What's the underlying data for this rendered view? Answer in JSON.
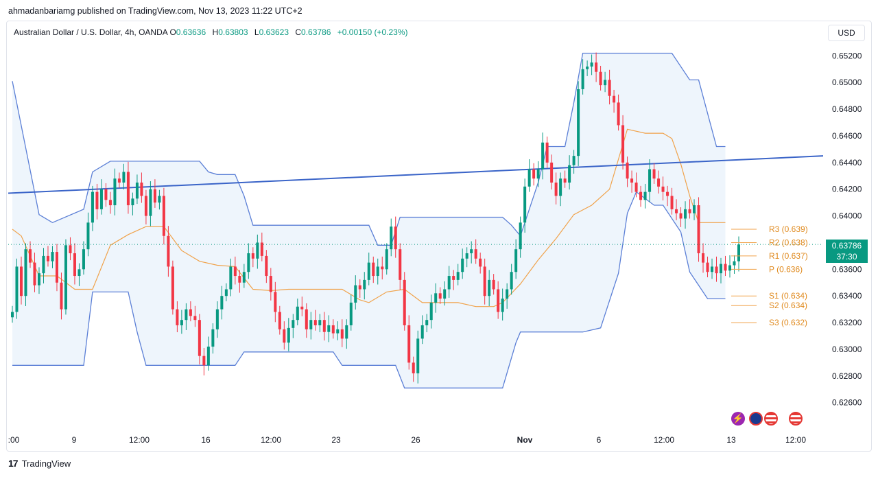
{
  "header": {
    "published_line": "ahmadanbariamg published on TradingView.com, Nov 13, 2023 11:22 UTC+2"
  },
  "legend": {
    "symbol": "Australian Dollar / U.S. Dollar, 4h, OANDA",
    "o_label": "O",
    "o_value": "0.63636",
    "h_label": "H",
    "h_value": "0.63803",
    "l_label": "L",
    "l_value": "0.63623",
    "c_label": "C",
    "c_value": "0.63786",
    "change": "+0.00150 (+0.23%)"
  },
  "currency_button": "USD",
  "price_tag": {
    "price": "0.63786",
    "countdown": "37:30"
  },
  "footer": {
    "logo": "17",
    "brand": "TradingView"
  },
  "icons": [
    "lightning-icon",
    "australia-flag-icon",
    "us-flag-icon",
    "us-flag-icon"
  ],
  "colors": {
    "up": "#089981",
    "down": "#f23645",
    "channel": "#5b7fd6",
    "channel_fill": "#e3effa",
    "midline": "#f0a24a",
    "trendline": "#3a64c8",
    "pivot": "#f0a24a"
  },
  "chart_data": {
    "type": "candlestick",
    "timeframe": "4h",
    "y_axis": {
      "ticks": [
        0.652,
        0.65,
        0.648,
        0.646,
        0.644,
        0.642,
        0.64,
        0.638,
        0.636,
        0.634,
        0.632,
        0.63,
        0.628,
        0.626
      ],
      "tick_labels": [
        "0.65200",
        "0.65000",
        "0.64800",
        "0.64600",
        "0.64400",
        "0.64200",
        "0.64000",
        "0.63800",
        "0.63600",
        "0.63400",
        "0.63200",
        "0.63000",
        "0.62800",
        "0.62600"
      ],
      "ylim": [
        0.6248,
        0.6531
      ]
    },
    "x_axis": {
      "labels": [
        ":00",
        "9",
        "12:00",
        "16",
        "12:00",
        "23",
        "26",
        "Nov",
        "6",
        "12:00",
        "13",
        "12:00"
      ],
      "bold_label": "Nov"
    },
    "candle_closes": [
      0.6328,
      0.6362,
      0.634,
      0.6375,
      0.6365,
      0.6348,
      0.6357,
      0.637,
      0.6366,
      0.6373,
      0.635,
      0.633,
      0.6378,
      0.6372,
      0.6355,
      0.636,
      0.6375,
      0.6395,
      0.6418,
      0.6405,
      0.642,
      0.6412,
      0.6408,
      0.6428,
      0.6425,
      0.6433,
      0.6408,
      0.6413,
      0.6425,
      0.6415,
      0.64,
      0.642,
      0.641,
      0.6415,
      0.6385,
      0.6362,
      0.633,
      0.6318,
      0.6322,
      0.633,
      0.6325,
      0.6322,
      0.6295,
      0.6288,
      0.6302,
      0.6315,
      0.633,
      0.634,
      0.6345,
      0.6362,
      0.6355,
      0.635,
      0.6358,
      0.6372,
      0.6368,
      0.638,
      0.637,
      0.6355,
      0.6343,
      0.6328,
      0.6315,
      0.6305,
      0.6316,
      0.6322,
      0.6332,
      0.633,
      0.6315,
      0.6322,
      0.6318,
      0.6322,
      0.6313,
      0.6318,
      0.6312,
      0.6315,
      0.6308,
      0.6318,
      0.6335,
      0.6348,
      0.6345,
      0.6352,
      0.6365,
      0.6355,
      0.6362,
      0.636,
      0.6375,
      0.6392,
      0.6375,
      0.6352,
      0.6318,
      0.629,
      0.6282,
      0.6308,
      0.6318,
      0.6322,
      0.6335,
      0.6342,
      0.6338,
      0.6345,
      0.6355,
      0.6352,
      0.6358,
      0.6368,
      0.6372,
      0.6375,
      0.6368,
      0.6362,
      0.634,
      0.6352,
      0.6345,
      0.6328,
      0.6338,
      0.6345,
      0.6358,
      0.6375,
      0.6395,
      0.6422,
      0.6435,
      0.6428,
      0.6435,
      0.6455,
      0.644,
      0.6425,
      0.6415,
      0.6428,
      0.6425,
      0.6438,
      0.6445,
      0.6495,
      0.651,
      0.6512,
      0.6515,
      0.6508,
      0.6498,
      0.6502,
      0.649,
      0.6485,
      0.6468,
      0.644,
      0.6428,
      0.6425,
      0.6418,
      0.6412,
      0.6418,
      0.6435,
      0.6428,
      0.6422,
      0.6418,
      0.6415,
      0.6405,
      0.6402,
      0.6398,
      0.6405,
      0.6402,
      0.6408,
      0.6372,
      0.6365,
      0.6358,
      0.6362,
      0.6357,
      0.6364,
      0.6359,
      0.6363,
      0.6366,
      0.63786
    ],
    "channel": {
      "upper_points": [
        [
          0,
          0.6501
        ],
        [
          6,
          0.6401
        ],
        [
          9,
          0.6395
        ],
        [
          16,
          0.6405
        ],
        [
          18,
          0.6433
        ],
        [
          22,
          0.6441
        ],
        [
          26,
          0.6441
        ],
        [
          36,
          0.6441
        ],
        [
          42,
          0.6441
        ],
        [
          44,
          0.6433
        ],
        [
          46,
          0.6431
        ],
        [
          50,
          0.6431
        ],
        [
          52,
          0.6415
        ],
        [
          54,
          0.6393
        ],
        [
          64,
          0.6393
        ],
        [
          76,
          0.6393
        ],
        [
          80,
          0.6393
        ],
        [
          82,
          0.6378
        ],
        [
          85,
          0.6378
        ],
        [
          87,
          0.6399
        ],
        [
          96,
          0.6399
        ],
        [
          110,
          0.6399
        ],
        [
          112,
          0.6393
        ],
        [
          114,
          0.6385
        ],
        [
          118,
          0.6425
        ],
        [
          120,
          0.6452
        ],
        [
          124,
          0.6452
        ],
        [
          126,
          0.6485
        ],
        [
          128,
          0.6522
        ],
        [
          132,
          0.6522
        ],
        [
          148,
          0.6522
        ],
        [
          152,
          0.6502
        ],
        [
          154,
          0.6502
        ],
        [
          158,
          0.6452
        ],
        [
          160,
          0.6452
        ]
      ],
      "lower_points": [
        [
          0,
          0.6288
        ],
        [
          16,
          0.6288
        ],
        [
          18,
          0.6343
        ],
        [
          22,
          0.6343
        ],
        [
          26,
          0.6343
        ],
        [
          28,
          0.6313
        ],
        [
          30,
          0.6288
        ],
        [
          32,
          0.6288
        ],
        [
          44,
          0.6288
        ],
        [
          50,
          0.6288
        ],
        [
          52,
          0.6298
        ],
        [
          60,
          0.6298
        ],
        [
          66,
          0.6298
        ],
        [
          72,
          0.6298
        ],
        [
          74,
          0.6288
        ],
        [
          86,
          0.6288
        ],
        [
          88,
          0.6271
        ],
        [
          106,
          0.6271
        ],
        [
          110,
          0.6271
        ],
        [
          113,
          0.6305
        ],
        [
          114,
          0.6313
        ],
        [
          128,
          0.6313
        ],
        [
          132,
          0.6316
        ],
        [
          136,
          0.6357
        ],
        [
          138,
          0.6402
        ],
        [
          140,
          0.6418
        ],
        [
          144,
          0.6408
        ],
        [
          146,
          0.6408
        ],
        [
          150,
          0.6388
        ],
        [
          152,
          0.6358
        ],
        [
          156,
          0.6338
        ],
        [
          160,
          0.6338
        ]
      ],
      "midline_points": [
        [
          0,
          0.639
        ],
        [
          2,
          0.6385
        ],
        [
          6,
          0.6355
        ],
        [
          10,
          0.6355
        ],
        [
          14,
          0.6345
        ],
        [
          18,
          0.6345
        ],
        [
          22,
          0.6378
        ],
        [
          26,
          0.6386
        ],
        [
          30,
          0.6392
        ],
        [
          34,
          0.6392
        ],
        [
          38,
          0.6374
        ],
        [
          42,
          0.6366
        ],
        [
          46,
          0.6363
        ],
        [
          50,
          0.6362
        ],
        [
          54,
          0.6345
        ],
        [
          58,
          0.6344
        ],
        [
          62,
          0.6345
        ],
        [
          66,
          0.6345
        ],
        [
          70,
          0.6345
        ],
        [
          74,
          0.6345
        ],
        [
          78,
          0.6337
        ],
        [
          80,
          0.6335
        ],
        [
          84,
          0.6343
        ],
        [
          88,
          0.6345
        ],
        [
          92,
          0.6335
        ],
        [
          96,
          0.6335
        ],
        [
          100,
          0.6335
        ],
        [
          104,
          0.6332
        ],
        [
          108,
          0.6332
        ],
        [
          110,
          0.6335
        ],
        [
          114,
          0.6349
        ],
        [
          118,
          0.6367
        ],
        [
          122,
          0.6383
        ],
        [
          126,
          0.6401
        ],
        [
          130,
          0.6408
        ],
        [
          134,
          0.642
        ],
        [
          138,
          0.6465
        ],
        [
          142,
          0.6462
        ],
        [
          146,
          0.6462
        ],
        [
          148,
          0.6458
        ],
        [
          150,
          0.6439
        ],
        [
          152,
          0.6415
        ],
        [
          154,
          0.6395
        ],
        [
          160,
          0.6395
        ]
      ]
    },
    "trendline": {
      "from": [
        0.0,
        0.6417
      ],
      "to": [
        1.0,
        0.6445
      ]
    },
    "pivots": [
      {
        "label": "R3 (0.639)",
        "value": 0.639
      },
      {
        "label": "R2 (0.638)",
        "value": 0.638
      },
      {
        "label": "R1 (0.637)",
        "value": 0.637
      },
      {
        "label": "P (0.636)",
        "value": 0.636
      },
      {
        "label": "S1 (0.634)",
        "value": 0.634
      },
      {
        "label": "S2 (0.634)",
        "value": 0.634
      },
      {
        "label": "S3 (0.632)",
        "value": 0.632
      }
    ],
    "last_price": 0.63786
  }
}
